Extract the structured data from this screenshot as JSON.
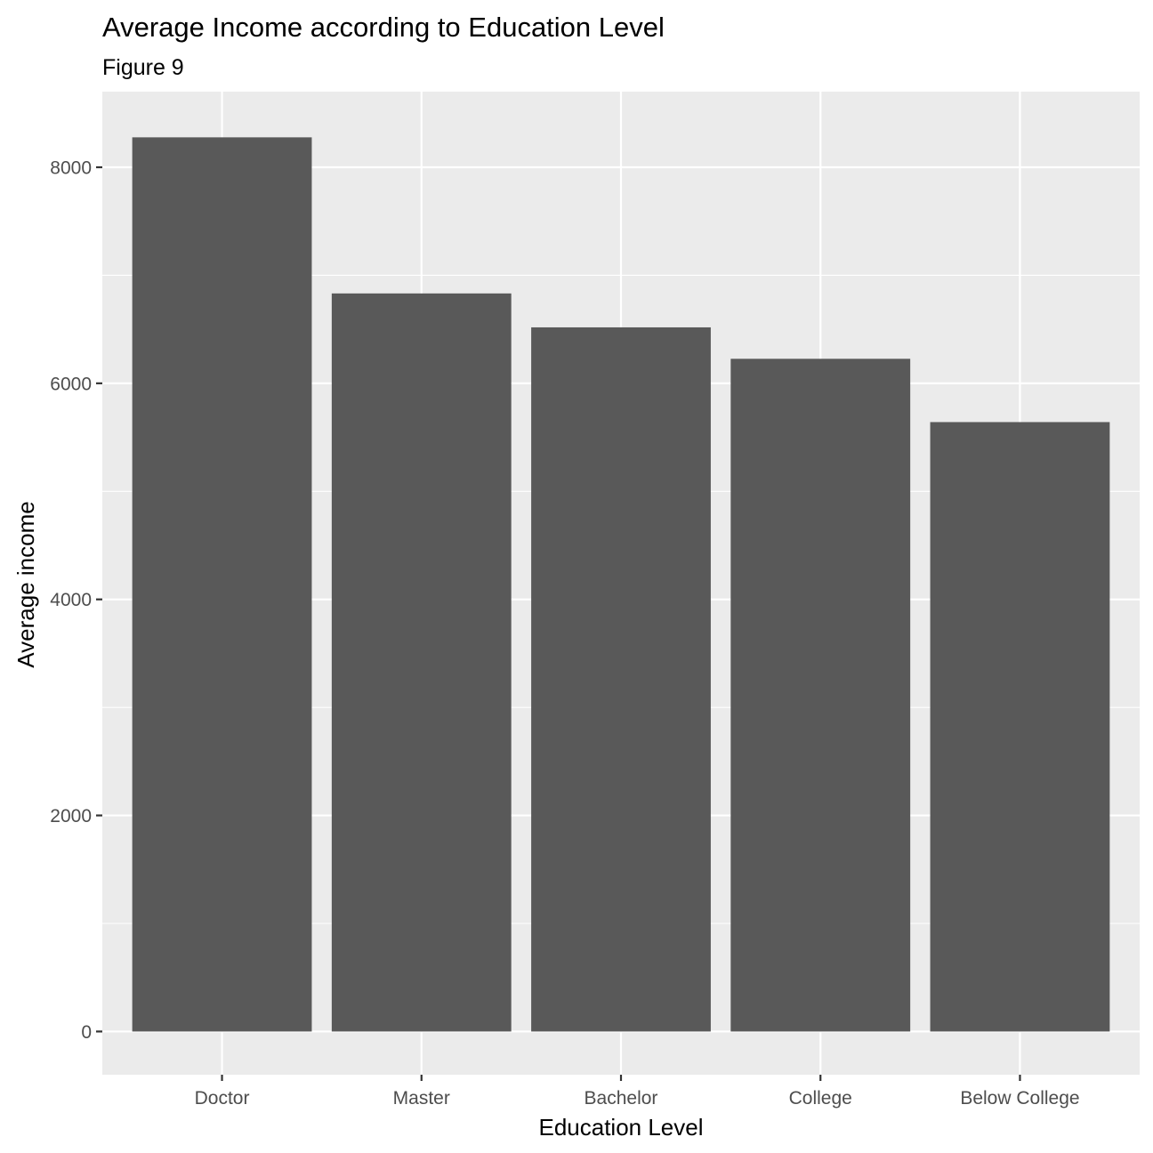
{
  "chart_data": {
    "type": "bar",
    "title": "Average Income according to Education Level",
    "subtitle": "Figure 9",
    "xlabel": "Education Level",
    "ylabel": "Average income",
    "categories": [
      "Doctor",
      "Master",
      "Bachelor",
      "College",
      "Below College"
    ],
    "values": [
      8277,
      6832,
      6518,
      6227,
      5641
    ],
    "ylim": [
      -400,
      8700
    ],
    "yticks": [
      0,
      2000,
      4000,
      6000,
      8000
    ],
    "ytick_labels": [
      "0",
      "2000",
      "4000",
      "6000",
      "8000"
    ],
    "grid": true,
    "legend": "none",
    "colors": {
      "bar": "#595959",
      "panel_background": "#ebebeb",
      "grid_major": "#ffffff",
      "grid_minor": "#f7f7f7",
      "tick": "#333333",
      "tick_label": "#4d4d4d"
    }
  }
}
